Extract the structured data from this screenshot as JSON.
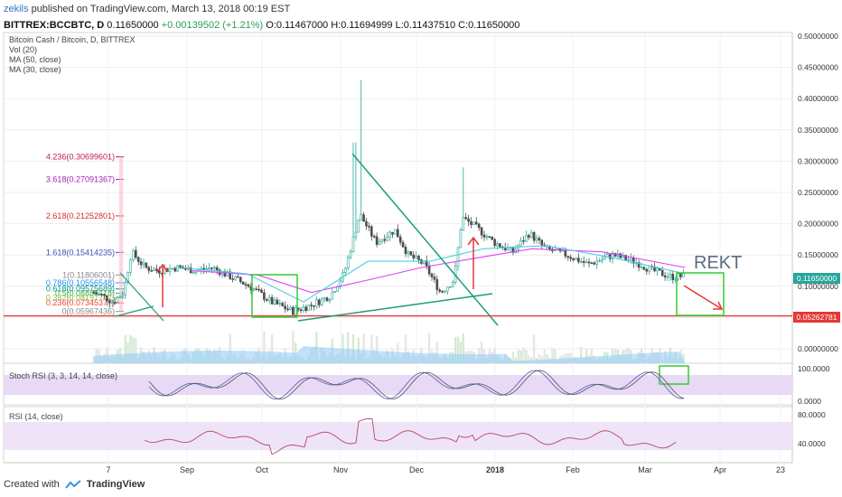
{
  "header": {
    "user": "zekils",
    "published": " published on TradingView.com, March 13, 2018 00:19 EST",
    "symbol": "BITTREX:BCCBTC, D",
    "last": "0.11650000",
    "change": "+0.00139502 (+1.21%)",
    "ohlc": "O:0.11467000 H:0.11694999 L:0.11437510 C:0.11650000"
  },
  "legend": {
    "title": "Bitcoin Cash / Bitcoin, D, BITTREX",
    "vol": "Vol (20)",
    "ma50": "MA (50, close)",
    "ma30": "MA (30, close)"
  },
  "fib_levels": [
    {
      "label": "4.236(0.30699601)",
      "value": 0.30699601,
      "color": "#c2185b"
    },
    {
      "label": "3.618(0.27091367)",
      "value": 0.27091367,
      "color": "#9c27b0"
    },
    {
      "label": "2.618(0.21252801)",
      "value": 0.21252801,
      "color": "#d32f2f"
    },
    {
      "label": "1.618(0.15414235)",
      "value": 0.15414235,
      "color": "#3f51b5"
    },
    {
      "label": "1(0.11806001)",
      "value": 0.11806001,
      "color": "#888888"
    },
    {
      "label": "0.786(0.10556548)",
      "value": 0.10556548,
      "color": "#2196f3"
    },
    {
      "label": "0.618(0.09575689)",
      "value": 0.09575689,
      "color": "#009688"
    },
    {
      "label": "0.5(0.08886718)",
      "value": 0.08886718,
      "color": "#4caf50"
    },
    {
      "label": "0.382(0.08197747)",
      "value": 0.08197747,
      "color": "#8bc34a"
    },
    {
      "label": "0.236(0.07345377)",
      "value": 0.07345377,
      "color": "#f44336"
    },
    {
      "label": "0(0.05967436)",
      "value": 0.05967436,
      "color": "#888888"
    }
  ],
  "annotation": {
    "rekt": "REKT"
  },
  "price_badges": {
    "last": "0.11650000",
    "support": "0.05262781"
  },
  "colors": {
    "up": "#26a69a",
    "down": "#4d4d4d",
    "ma50": "#e040fb",
    "ma30": "#4dd0e1",
    "support": "#e53935",
    "box": "#33cc33",
    "trend": "#1b9e77",
    "arrow": "#e53935",
    "volume": "#90caf9"
  },
  "chart_data": [
    {
      "type": "line",
      "name": "price",
      "y_axis_ticks": [
        "0.50000000",
        "0.45000000",
        "0.40000000",
        "0.35000000",
        "0.30000000",
        "0.25000000",
        "0.20000000",
        "0.15000000",
        "0.10000000",
        "0.05000000",
        "0.00000000"
      ],
      "ylim": [
        0.0,
        0.5
      ],
      "x_ticks": [
        "7",
        "Sep",
        "Oct",
        "Nov",
        "Dec",
        "2018",
        "Feb",
        "Mar",
        "Apr",
        "23"
      ],
      "close": [
        {
          "x": "2017-08-05",
          "y": 0.09
        },
        {
          "x": "2017-08-08",
          "y": 0.085
        },
        {
          "x": "2017-08-12",
          "y": 0.075
        },
        {
          "x": "2017-08-16",
          "y": 0.09
        },
        {
          "x": "2017-08-19",
          "y": 0.155
        },
        {
          "x": "2017-08-24",
          "y": 0.13
        },
        {
          "x": "2017-08-29",
          "y": 0.125
        },
        {
          "x": "2017-09-05",
          "y": 0.13
        },
        {
          "x": "2017-09-12",
          "y": 0.125
        },
        {
          "x": "2017-09-18",
          "y": 0.13
        },
        {
          "x": "2017-09-25",
          "y": 0.115
        },
        {
          "x": "2017-10-02",
          "y": 0.1
        },
        {
          "x": "2017-10-10",
          "y": 0.075
        },
        {
          "x": "2017-10-18",
          "y": 0.06
        },
        {
          "x": "2017-10-25",
          "y": 0.07
        },
        {
          "x": "2017-11-01",
          "y": 0.085
        },
        {
          "x": "2017-11-06",
          "y": 0.12
        },
        {
          "x": "2017-11-12",
          "y": 0.215
        },
        {
          "x": "2017-11-18",
          "y": 0.17
        },
        {
          "x": "2017-11-25",
          "y": 0.19
        },
        {
          "x": "2017-11-30",
          "y": 0.15
        },
        {
          "x": "2017-12-06",
          "y": 0.135
        },
        {
          "x": "2017-12-12",
          "y": 0.09
        },
        {
          "x": "2017-12-17",
          "y": 0.11
        },
        {
          "x": "2017-12-20",
          "y": 0.21
        },
        {
          "x": "2017-12-25",
          "y": 0.195
        },
        {
          "x": "2018-01-01",
          "y": 0.17
        },
        {
          "x": "2018-01-08",
          "y": 0.155
        },
        {
          "x": "2018-01-14",
          "y": 0.185
        },
        {
          "x": "2018-01-20",
          "y": 0.16
        },
        {
          "x": "2018-01-28",
          "y": 0.15
        },
        {
          "x": "2018-02-05",
          "y": 0.135
        },
        {
          "x": "2018-02-14",
          "y": 0.15
        },
        {
          "x": "2018-02-22",
          "y": 0.14
        },
        {
          "x": "2018-03-01",
          "y": 0.125
        },
        {
          "x": "2018-03-08",
          "y": 0.115
        },
        {
          "x": "2018-03-13",
          "y": 0.1165
        }
      ],
      "ma50": [
        {
          "x": "2017-09-10",
          "y": 0.125
        },
        {
          "x": "2017-10-05",
          "y": 0.118
        },
        {
          "x": "2017-10-25",
          "y": 0.09
        },
        {
          "x": "2017-11-15",
          "y": 0.11
        },
        {
          "x": "2017-12-05",
          "y": 0.13
        },
        {
          "x": "2017-12-25",
          "y": 0.145
        },
        {
          "x": "2018-01-15",
          "y": 0.16
        },
        {
          "x": "2018-02-10",
          "y": 0.155
        },
        {
          "x": "2018-03-13",
          "y": 0.13
        }
      ],
      "ma30": [
        {
          "x": "2017-09-05",
          "y": 0.13
        },
        {
          "x": "2017-10-01",
          "y": 0.12
        },
        {
          "x": "2017-10-22",
          "y": 0.075
        },
        {
          "x": "2017-11-15",
          "y": 0.14
        },
        {
          "x": "2017-12-08",
          "y": 0.14
        },
        {
          "x": "2017-12-28",
          "y": 0.16
        },
        {
          "x": "2018-01-20",
          "y": 0.165
        },
        {
          "x": "2018-02-15",
          "y": 0.145
        },
        {
          "x": "2018-03-13",
          "y": 0.12
        }
      ],
      "support": 0.05262781,
      "last": 0.1165
    },
    {
      "type": "line",
      "name": "Stoch RSI (3, 3, 14, 14, close)",
      "y_axis_ticks": [
        "100.0000",
        "0.0000"
      ],
      "ylim": [
        0,
        100
      ]
    },
    {
      "type": "line",
      "name": "RSI (14, close)",
      "y_axis_ticks": [
        "80.0000",
        "40.0000"
      ],
      "ylim": [
        20,
        90
      ]
    }
  ]
}
